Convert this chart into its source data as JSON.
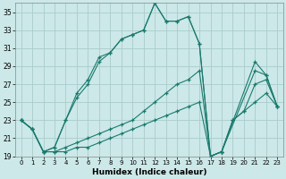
{
  "xlabel": "Humidex (Indice chaleur)",
  "bg_color": "#cce8e8",
  "grid_color": "#aacccc",
  "line_color": "#1a7a6e",
  "xlim": [
    -0.5,
    23.5
  ],
  "ylim": [
    19,
    36
  ],
  "xticks": [
    0,
    1,
    2,
    3,
    4,
    5,
    6,
    7,
    8,
    9,
    10,
    11,
    12,
    13,
    14,
    15,
    16,
    17,
    18,
    19,
    20,
    21,
    22,
    23
  ],
  "yticks": [
    19,
    21,
    23,
    25,
    27,
    29,
    31,
    33,
    35
  ],
  "lines": [
    {
      "x": [
        0,
        1,
        2,
        3,
        4,
        5,
        6,
        7,
        8,
        9,
        10,
        11,
        12,
        13,
        14,
        15,
        16,
        17,
        18,
        19,
        20,
        21,
        22,
        23
      ],
      "y": [
        23,
        22,
        19.5,
        19.5,
        19.5,
        20,
        20,
        20.5,
        21,
        21.5,
        22,
        22.5,
        23,
        23.5,
        24,
        24.5,
        25,
        19,
        19.5,
        23,
        24,
        25,
        26,
        24.5
      ]
    },
    {
      "x": [
        0,
        1,
        2,
        3,
        4,
        5,
        6,
        7,
        8,
        9,
        10,
        11,
        12,
        13,
        14,
        15,
        16,
        17,
        18,
        19,
        20,
        21,
        22,
        23
      ],
      "y": [
        23,
        22,
        19.5,
        19.5,
        20,
        20.5,
        21,
        21.5,
        22,
        22.5,
        23,
        24,
        25,
        26,
        27,
        27.5,
        28.5,
        19,
        19.5,
        23,
        24,
        27,
        27.5,
        24.5
      ]
    },
    {
      "x": [
        0,
        1,
        2,
        3,
        4,
        5,
        6,
        7,
        8,
        9,
        10,
        11,
        12,
        13,
        14,
        15,
        16,
        17,
        18,
        21,
        22,
        23
      ],
      "y": [
        23,
        22,
        19.5,
        20,
        23,
        25.5,
        27,
        29.5,
        30.5,
        32,
        32.5,
        33,
        36,
        34,
        34,
        34.5,
        31.5,
        19,
        19.5,
        29.5,
        28,
        24.5
      ]
    },
    {
      "x": [
        0,
        1,
        2,
        3,
        4,
        5,
        6,
        7,
        8,
        9,
        10,
        11,
        12,
        13,
        14,
        15,
        16,
        17,
        18,
        21,
        22,
        23
      ],
      "y": [
        23,
        22,
        19.5,
        20,
        23,
        26,
        27.5,
        30,
        30.5,
        32,
        32.5,
        33,
        36,
        34,
        34,
        34.5,
        31.5,
        19,
        19.5,
        28.5,
        28,
        24.5
      ]
    }
  ]
}
